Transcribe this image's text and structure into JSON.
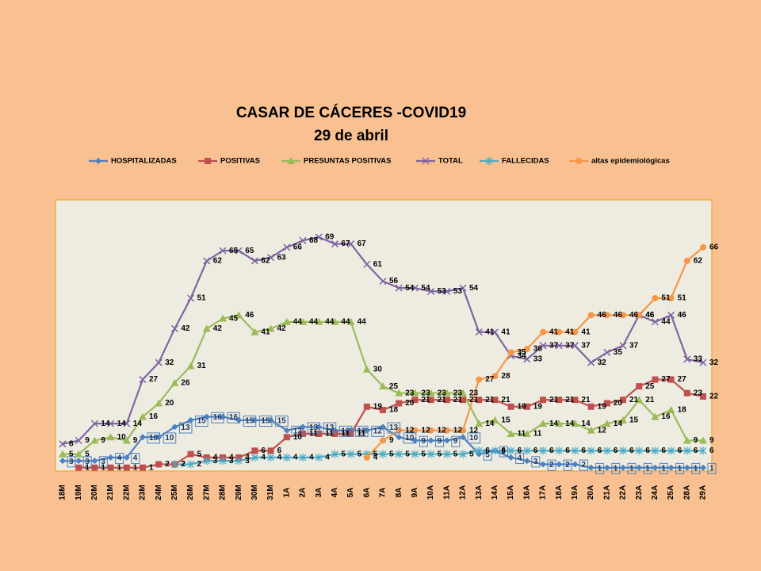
{
  "chart_data": {
    "type": "line",
    "title": "CASAR DE CÁCERES -COVID19",
    "subtitle": "29 de abril",
    "categories": [
      "18M",
      "19M",
      "20M",
      "21M",
      "22M",
      "23M",
      "24M",
      "25M",
      "26M",
      "27M",
      "28M",
      "29M",
      "30M",
      "31M",
      "1A",
      "2A",
      "3A",
      "4A",
      "5A",
      "6A",
      "7A",
      "8A",
      "9A",
      "10A",
      "11A",
      "12A",
      "13A",
      "14A",
      "15A",
      "16A",
      "17A",
      "18A",
      "19A",
      "20A",
      "21A",
      "22A",
      "23A",
      "24A",
      "25A",
      "28A",
      "29A"
    ],
    "ylim": [
      0,
      80
    ],
    "series": [
      {
        "name": "HOSPITALIZADAS",
        "color": "#4f81bd",
        "marker": "diamond",
        "values": [
          3,
          3,
          3,
          4,
          4,
          10,
          10,
          13,
          15,
          16,
          16,
          15,
          15,
          15,
          12,
          13,
          13,
          12,
          12,
          12,
          13,
          10,
          9,
          9,
          9,
          10,
          5,
          6,
          4,
          3,
          2,
          2,
          2,
          1,
          1,
          1,
          1,
          1,
          1,
          1,
          1
        ]
      },
      {
        "name": "POSITIVAS",
        "color": "#c0504d",
        "marker": "square",
        "values": [
          null,
          1,
          1,
          1,
          1,
          1,
          2,
          2,
          5,
          4,
          4,
          4,
          6,
          6,
          10,
          11,
          11,
          11,
          11,
          19,
          18,
          20,
          21,
          21,
          21,
          21,
          21,
          21,
          19,
          19,
          21,
          21,
          21,
          19,
          20,
          21,
          25,
          27,
          27,
          23,
          22
        ]
      },
      {
        "name": "PRESUNTAS POSITIVAS",
        "color": "#9bbb59",
        "marker": "triangle",
        "values": [
          5,
          5,
          9,
          10,
          9,
          16,
          20,
          26,
          31,
          42,
          45,
          46,
          41,
          42,
          44,
          44,
          44,
          44,
          44,
          30,
          25,
          23,
          23,
          23,
          23,
          23,
          14,
          15,
          11,
          11,
          14,
          14,
          14,
          12,
          14,
          15,
          21,
          16,
          18,
          9,
          9
        ]
      },
      {
        "name": "TOTAL",
        "color": "#8064a2",
        "marker": "x",
        "values": [
          8,
          9,
          14,
          14,
          14,
          27,
          32,
          42,
          51,
          62,
          65,
          65,
          62,
          63,
          66,
          68,
          69,
          67,
          67,
          61,
          56,
          54,
          54,
          53,
          53,
          54,
          41,
          41,
          34,
          33,
          37,
          37,
          37,
          32,
          35,
          37,
          46,
          44,
          46,
          33,
          32
        ]
      },
      {
        "name": "FALLECIDAS",
        "color": "#4bacc6",
        "marker": "star",
        "values": [
          null,
          null,
          null,
          null,
          null,
          null,
          null,
          2,
          2,
          3,
          3,
          3,
          4,
          4,
          4,
          4,
          4,
          5,
          5,
          5,
          5,
          5,
          5,
          5,
          5,
          5,
          6,
          6,
          6,
          6,
          6,
          6,
          6,
          6,
          6,
          6,
          6,
          6,
          6,
          6,
          6
        ]
      },
      {
        "name": "altas epidemiológicas",
        "color": "#f79646",
        "marker": "circle",
        "values": [
          null,
          null,
          null,
          null,
          null,
          null,
          null,
          null,
          null,
          null,
          null,
          null,
          null,
          null,
          null,
          null,
          null,
          null,
          null,
          4,
          9,
          12,
          12,
          12,
          12,
          12,
          27,
          28,
          35,
          36,
          41,
          41,
          41,
          46,
          46,
          46,
          46,
          51,
          51,
          62,
          66
        ]
      }
    ]
  }
}
